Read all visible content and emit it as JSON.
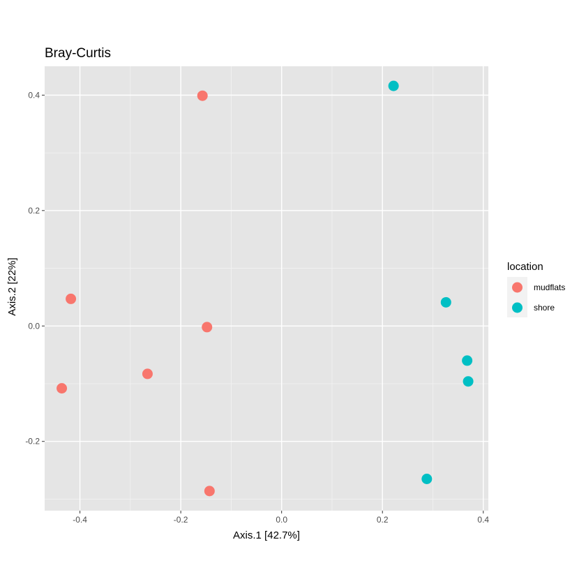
{
  "chart_data": {
    "type": "scatter",
    "title": "Bray-Curtis",
    "xlabel": "Axis.1   [42.7%]",
    "ylabel": "Axis.2   [22%]",
    "xlim": [
      -0.47,
      0.41
    ],
    "ylim": [
      -0.32,
      0.45
    ],
    "x_ticks": [
      -0.4,
      -0.2,
      0.0,
      0.2,
      0.4
    ],
    "x_tick_labels": [
      "-0.4",
      "-0.2",
      "0.0",
      "0.2",
      "0.4"
    ],
    "y_ticks": [
      -0.2,
      0.0,
      0.2,
      0.4
    ],
    "y_tick_labels": [
      "-0.2",
      "0.0",
      "0.2",
      "0.4"
    ],
    "grid": true,
    "legend": {
      "title": "location",
      "placement": "right"
    },
    "series": [
      {
        "name": "mudflats",
        "color": "#F8766D",
        "points": [
          {
            "x": -0.157,
            "y": 0.399
          },
          {
            "x": -0.418,
            "y": 0.047
          },
          {
            "x": -0.148,
            "y": -0.002
          },
          {
            "x": -0.266,
            "y": -0.083
          },
          {
            "x": -0.436,
            "y": -0.108
          },
          {
            "x": -0.143,
            "y": -0.286
          }
        ]
      },
      {
        "name": "shore",
        "color": "#00BFC4",
        "points": [
          {
            "x": 0.222,
            "y": 0.416
          },
          {
            "x": 0.326,
            "y": 0.041
          },
          {
            "x": 0.368,
            "y": -0.06
          },
          {
            "x": 0.37,
            "y": -0.096
          },
          {
            "x": 0.288,
            "y": -0.265
          }
        ]
      }
    ]
  }
}
